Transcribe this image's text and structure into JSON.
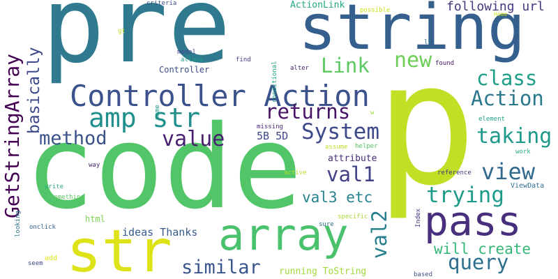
{
  "words": [
    {
      "text": "pre",
      "color": "#2f7a8e"
    },
    {
      "text": "string",
      "color": "#355f8d"
    },
    {
      "text": "p",
      "color": "#c0df25"
    },
    {
      "text": "code",
      "color": "#52c569"
    },
    {
      "text": "Controller Action",
      "color": "#3b518b"
    },
    {
      "text": "amp str",
      "color": "#21908d"
    },
    {
      "text": "str",
      "color": "#dde318"
    },
    {
      "text": "array",
      "color": "#4ac16d"
    },
    {
      "text": "pass",
      "color": "#472f7d"
    },
    {
      "text": "GetStringArray",
      "color": "#440154"
    },
    {
      "text": "basically",
      "color": "#3e4a89"
    },
    {
      "text": "method",
      "color": "#3b528b"
    },
    {
      "text": "value",
      "color": "#481f70"
    },
    {
      "text": "returns",
      "color": "#481467"
    },
    {
      "text": "System",
      "color": "#3e4989"
    },
    {
      "text": "Link",
      "color": "#5ec962"
    },
    {
      "text": "new",
      "color": "#6ece58"
    },
    {
      "text": "class",
      "color": "#1f9e89"
    },
    {
      "text": "Action",
      "color": "#2a788e"
    },
    {
      "text": "taking",
      "color": "#1f9a8a"
    },
    {
      "text": "view",
      "color": "#31688e"
    },
    {
      "text": "val1",
      "color": "#424086"
    },
    {
      "text": "trying",
      "color": "#1e9c89"
    },
    {
      "text": "val3 etc",
      "color": "#26828e"
    },
    {
      "text": "val2",
      "color": "#277f8e"
    },
    {
      "text": "query",
      "color": "#2d708e"
    },
    {
      "text": "will create",
      "color": "#35b779"
    },
    {
      "text": "similar",
      "color": "#3a548c"
    },
    {
      "text": "following url",
      "color": "#453781"
    },
    {
      "text": "5B 5D",
      "color": "#3f4788"
    },
    {
      "text": "attribute",
      "color": "#472c7a"
    },
    {
      "text": "ideas Thanks",
      "color": "#365c8d"
    },
    {
      "text": "running ToString",
      "color": "#a0da39"
    },
    {
      "text": "html",
      "color": "#7ad151"
    },
    {
      "text": "ActionLink",
      "color": "#22a785"
    },
    {
      "text": "criteria",
      "color": "#3d4e8a"
    },
    {
      "text": "possible",
      "color": "#d0e11c"
    },
    {
      "text": "gt",
      "color": "#c2df23"
    },
    {
      "text": "Home",
      "color": "#cae11f"
    },
    {
      "text": "lt",
      "color": "#2c738e"
    },
    {
      "text": "model",
      "color": "#3f4889"
    },
    {
      "text": "allows",
      "color": "#1fa088"
    },
    {
      "text": "Controller",
      "color": "#3d4d8a"
    },
    {
      "text": "find",
      "color": "#443983"
    },
    {
      "text": "conditional",
      "color": "#20a386"
    },
    {
      "text": "alter",
      "color": "#482475"
    },
    {
      "text": "found",
      "color": "#471063"
    },
    {
      "text": "w",
      "color": "#a2da37"
    },
    {
      "text": "missing",
      "color": "#482878"
    },
    {
      "text": "name",
      "color": "#1f968b"
    },
    {
      "text": "element",
      "color": "#1fa187"
    },
    {
      "text": "assume",
      "color": "#bade28"
    },
    {
      "text": "helper",
      "color": "#50c46a"
    },
    {
      "text": "work",
      "color": "#27ad81"
    },
    {
      "text": "way",
      "color": "#482173"
    },
    {
      "text": "active",
      "color": "#b5de2b"
    },
    {
      "text": "reference",
      "color": "#46307e"
    },
    {
      "text": "write",
      "color": "#2db27d"
    },
    {
      "text": "something",
      "color": "#5cc863"
    },
    {
      "text": "ViewData",
      "color": "#2e6e8e"
    },
    {
      "text": "looking",
      "color": "#2a768e"
    },
    {
      "text": "onclick",
      "color": "#34618d"
    },
    {
      "text": "specific",
      "color": "#a8db34"
    },
    {
      "text": "sure",
      "color": "#2e6f8e"
    },
    {
      "text": "Index",
      "color": "#463480"
    },
    {
      "text": "seem",
      "color": "#3f4788"
    },
    {
      "text": "add",
      "color": "#dfe318"
    },
    {
      "text": "based",
      "color": "#3c4f8a"
    }
  ]
}
